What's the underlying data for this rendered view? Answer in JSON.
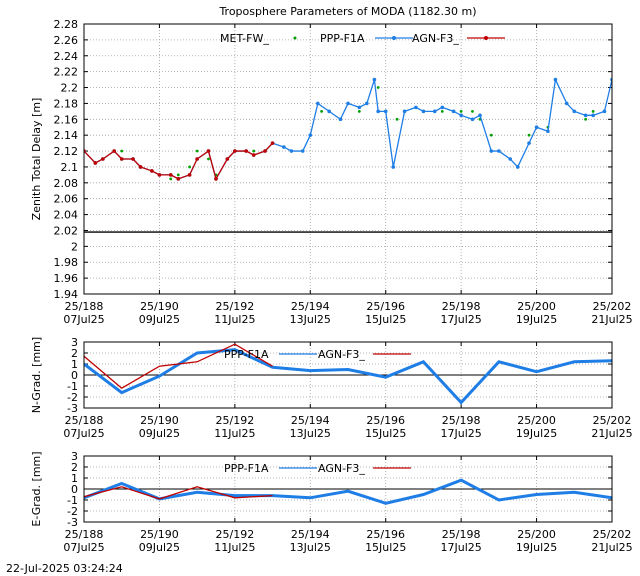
{
  "footer": {
    "timestamp": "22-Jul-2025 03:24:24"
  },
  "colors": {
    "met": "#00a000",
    "ppp": "#1e7ee6",
    "agn": "#c00000",
    "zero": "#000000"
  },
  "chart_data": [
    {
      "type": "line",
      "title": "Troposphere Parameters of MODA (1182.30 m)",
      "ylabel": "Zenith Total Delay [m]",
      "xlim": [
        188,
        202
      ],
      "ylim": [
        1.94,
        2.28
      ],
      "yticks": [
        1.94,
        1.96,
        1.98,
        2.0,
        2.02,
        2.04,
        2.06,
        2.08,
        2.1,
        2.12,
        2.14,
        2.16,
        2.18,
        2.2,
        2.22,
        2.24,
        2.26,
        2.28
      ],
      "ytick_labels": [
        "1.94",
        "1.96",
        "1.98",
        "2",
        "2.02",
        "2.04",
        "2.06",
        "2.08",
        "2.1",
        "2.12",
        "2.14",
        "2.16",
        "2.18",
        "2.2",
        "2.22",
        "2.24",
        "2.26",
        "2.28"
      ],
      "xticks": [
        188,
        190,
        192,
        194,
        196,
        198,
        200,
        202
      ],
      "xtick_labels": [
        [
          "25/188",
          "07Jul25"
        ],
        [
          "25/190",
          "09Jul25"
        ],
        [
          "25/192",
          "11Jul25"
        ],
        [
          "25/194",
          "13Jul25"
        ],
        [
          "25/196",
          "15Jul25"
        ],
        [
          "25/198",
          "17Jul25"
        ],
        [
          "25/200",
          "19Jul25"
        ],
        [
          "25/202",
          "21Jul25"
        ]
      ],
      "grid": true,
      "legend": "top",
      "series": [
        {
          "name": "MET-FW_",
          "style": "points",
          "color": "#00a000",
          "x": [
            188.0,
            188.5,
            189.0,
            189.5,
            190.0,
            190.3,
            190.5,
            190.8,
            191.0,
            191.3,
            191.5,
            191.8,
            192.0,
            192.5,
            193.0,
            193.5,
            193.8,
            194.0,
            194.3,
            194.5,
            194.8,
            195.0,
            195.3,
            195.5,
            195.8,
            196.0,
            196.3,
            196.5,
            197.0,
            197.5,
            198.0,
            198.3,
            198.5,
            198.8,
            199.0,
            199.3,
            199.5,
            199.8,
            200.0,
            200.3,
            200.5,
            200.8,
            201.0,
            201.3,
            201.5,
            201.8,
            202.0
          ],
          "y": [
            2.12,
            2.11,
            2.12,
            2.1,
            2.09,
            2.085,
            2.09,
            2.1,
            2.12,
            2.11,
            2.09,
            2.11,
            2.12,
            2.12,
            2.13,
            2.12,
            2.12,
            2.14,
            2.17,
            2.17,
            2.16,
            2.18,
            2.17,
            2.18,
            2.2,
            2.17,
            2.16,
            2.17,
            2.17,
            2.17,
            2.17,
            2.17,
            2.16,
            2.14,
            2.12,
            2.11,
            2.1,
            2.14,
            2.15,
            2.15,
            2.21,
            2.18,
            2.17,
            2.16,
            2.17,
            2.17,
            2.21
          ]
        },
        {
          "name": "PPP-F1A",
          "style": "linepoints",
          "color": "#1e7ee6",
          "x": [
            188.0,
            188.3,
            188.5,
            188.8,
            189.0,
            189.3,
            189.5,
            189.8,
            190.0,
            190.3,
            190.5,
            190.8,
            191.0,
            191.3,
            191.5,
            191.8,
            192.0,
            192.3,
            192.5,
            192.8,
            193.0,
            193.3,
            193.5,
            193.8,
            194.0,
            194.2,
            194.5,
            194.8,
            195.0,
            195.3,
            195.5,
            195.7,
            195.8,
            196.0,
            196.2,
            196.5,
            196.8,
            197.0,
            197.3,
            197.5,
            197.8,
            198.0,
            198.3,
            198.5,
            198.8,
            199.0,
            199.3,
            199.5,
            199.8,
            200.0,
            200.3,
            200.5,
            200.8,
            201.0,
            201.3,
            201.5,
            201.8,
            202.0
          ],
          "y": [
            2.12,
            2.105,
            2.11,
            2.12,
            2.11,
            2.11,
            2.1,
            2.095,
            2.09,
            2.09,
            2.085,
            2.09,
            2.11,
            2.12,
            2.085,
            2.11,
            2.12,
            2.12,
            2.115,
            2.12,
            2.13,
            2.125,
            2.12,
            2.12,
            2.14,
            2.18,
            2.17,
            2.16,
            2.18,
            2.175,
            2.18,
            2.21,
            2.17,
            2.17,
            2.1,
            2.17,
            2.175,
            2.17,
            2.17,
            2.175,
            2.17,
            2.165,
            2.16,
            2.165,
            2.12,
            2.12,
            2.11,
            2.1,
            2.13,
            2.15,
            2.145,
            2.21,
            2.18,
            2.17,
            2.165,
            2.165,
            2.17,
            2.21
          ]
        },
        {
          "name": "AGN-F3_",
          "style": "linepoints",
          "color": "#c00000",
          "x": [
            188.0,
            188.3,
            188.5,
            188.8,
            189.0,
            189.3,
            189.5,
            189.8,
            190.0,
            190.3,
            190.5,
            190.8,
            191.0,
            191.3,
            191.5,
            191.8,
            192.0,
            192.3,
            192.5,
            192.8,
            193.0
          ],
          "y": [
            2.12,
            2.105,
            2.11,
            2.12,
            2.11,
            2.11,
            2.1,
            2.095,
            2.09,
            2.09,
            2.085,
            2.09,
            2.11,
            2.12,
            2.085,
            2.11,
            2.12,
            2.12,
            2.115,
            2.12,
            2.13
          ]
        },
        {
          "name": "",
          "style": "line",
          "color": "#000000",
          "x": [
            188,
            202
          ],
          "y": [
            2.018,
            2.018
          ]
        }
      ]
    },
    {
      "type": "line",
      "ylabel": "N-Grad. [mm]",
      "xlim": [
        188,
        202
      ],
      "ylim": [
        -3,
        3
      ],
      "yticks": [
        -3,
        -2,
        -1,
        0,
        1,
        2,
        3
      ],
      "ytick_labels": [
        "-3",
        "-2",
        "-1",
        "0",
        "1",
        "2",
        "3"
      ],
      "xticks": [
        188,
        190,
        192,
        194,
        196,
        198,
        200,
        202
      ],
      "xtick_labels": [
        [
          "25/188",
          "07Jul25"
        ],
        [
          "25/190",
          "09Jul25"
        ],
        [
          "25/192",
          "11Jul25"
        ],
        [
          "25/194",
          "13Jul25"
        ],
        [
          "25/196",
          "15Jul25"
        ],
        [
          "25/198",
          "17Jul25"
        ],
        [
          "25/200",
          "19Jul25"
        ],
        [
          "25/202",
          "21Jul25"
        ]
      ],
      "grid": true,
      "legend": "top",
      "series": [
        {
          "name": "PPP-F1A",
          "style": "line",
          "color": "#1e7ee6",
          "x": [
            188,
            189,
            190,
            191,
            192,
            193,
            194,
            195,
            196,
            197,
            198,
            199,
            200,
            201,
            202
          ],
          "y": [
            1.0,
            -1.6,
            -0.1,
            2.0,
            2.3,
            0.7,
            0.4,
            0.5,
            -0.2,
            1.2,
            -2.5,
            1.2,
            0.3,
            1.2,
            1.3
          ]
        },
        {
          "name": "AGN-F3_",
          "style": "line",
          "color": "#c00000",
          "x": [
            188,
            189,
            190,
            191,
            192,
            193
          ],
          "y": [
            1.7,
            -1.2,
            0.8,
            1.2,
            2.8,
            0.8
          ]
        }
      ]
    },
    {
      "type": "line",
      "ylabel": "E-Grad. [mm]",
      "xlim": [
        188,
        202
      ],
      "ylim": [
        -3,
        3
      ],
      "yticks": [
        -3,
        -2,
        -1,
        0,
        1,
        2,
        3
      ],
      "ytick_labels": [
        "-3",
        "-2",
        "-1",
        "0",
        "1",
        "2",
        "3"
      ],
      "xticks": [
        188,
        190,
        192,
        194,
        196,
        198,
        200,
        202
      ],
      "xtick_labels": [
        [
          "25/188",
          "07Jul25"
        ],
        [
          "25/190",
          "09Jul25"
        ],
        [
          "25/192",
          "11Jul25"
        ],
        [
          "25/194",
          "13Jul25"
        ],
        [
          "25/196",
          "15Jul25"
        ],
        [
          "25/198",
          "17Jul25"
        ],
        [
          "25/200",
          "19Jul25"
        ],
        [
          "25/202",
          "21Jul25"
        ]
      ],
      "grid": true,
      "legend": "top",
      "series": [
        {
          "name": "PPP-F1A",
          "style": "line",
          "color": "#1e7ee6",
          "x": [
            188,
            189,
            190,
            191,
            192,
            193,
            194,
            195,
            196,
            197,
            198,
            199,
            200,
            201,
            202
          ],
          "y": [
            -0.8,
            0.5,
            -0.9,
            -0.3,
            -0.6,
            -0.6,
            -0.8,
            -0.2,
            -1.3,
            -0.5,
            0.8,
            -1.0,
            -0.5,
            -0.3,
            -0.8
          ]
        },
        {
          "name": "AGN-F3_",
          "style": "line",
          "color": "#c00000",
          "x": [
            188,
            189,
            190,
            191,
            192,
            193
          ],
          "y": [
            -0.7,
            0.2,
            -0.9,
            0.2,
            -0.8,
            -0.6
          ]
        }
      ]
    }
  ]
}
